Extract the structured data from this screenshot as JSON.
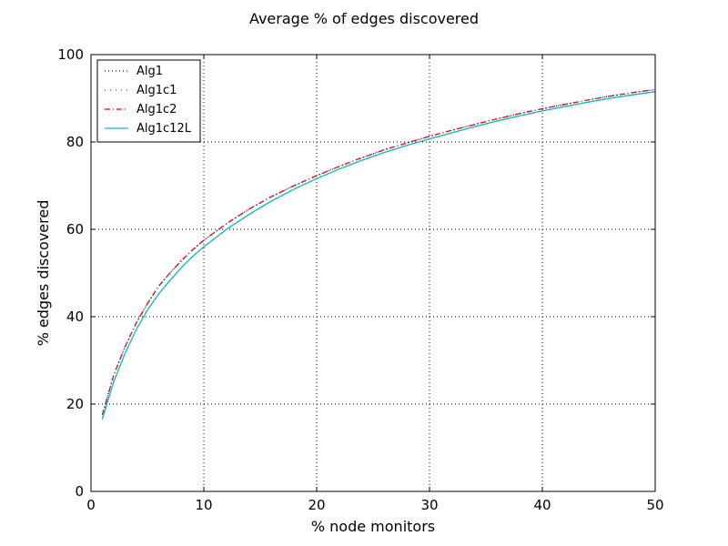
{
  "chart_data": {
    "type": "line",
    "title": "Average % of edges discovered",
    "xlabel": "% node monitors",
    "ylabel": "% edges discovered",
    "xlim": [
      0,
      50
    ],
    "ylim": [
      0,
      100
    ],
    "xticks": [
      0,
      10,
      20,
      30,
      40,
      50
    ],
    "yticks": [
      0,
      20,
      40,
      60,
      80,
      100
    ],
    "grid": true,
    "legend_position": "top-left",
    "x": [
      1,
      2,
      3,
      4,
      5,
      6,
      7,
      8,
      9,
      10,
      12,
      14,
      16,
      18,
      20,
      22,
      24,
      26,
      28,
      30,
      32,
      34,
      36,
      38,
      40,
      42,
      44,
      46,
      48,
      50
    ],
    "series": [
      {
        "name": "Alg1",
        "style": "dotted",
        "color": "#0000bf",
        "values": [
          17.5,
          26.5,
          33.0,
          38.5,
          43.0,
          47.0,
          50.0,
          52.8,
          55.3,
          57.5,
          61.3,
          64.6,
          67.5,
          70.0,
          72.3,
          74.4,
          76.4,
          78.2,
          79.8,
          81.3,
          82.7,
          84.0,
          85.3,
          86.5,
          87.6,
          88.6,
          89.6,
          90.5,
          91.3,
          92.0
        ]
      },
      {
        "name": "Alg1c1",
        "style": "dashdot-sparse",
        "color": "#008000",
        "values": [
          16.8,
          25.0,
          31.5,
          37.0,
          41.5,
          45.2,
          48.3,
          51.2,
          53.8,
          56.0,
          60.0,
          63.4,
          66.5,
          69.2,
          71.6,
          73.8,
          75.8,
          77.6,
          79.2,
          80.7,
          82.1,
          83.5,
          84.8,
          86.0,
          87.1,
          88.1,
          89.1,
          90.0,
          90.8,
          91.5
        ]
      },
      {
        "name": "Alg1c2",
        "style": "dashdot",
        "color": "#ff0000",
        "values": [
          17.5,
          26.5,
          33.0,
          38.5,
          43.0,
          47.0,
          50.0,
          52.8,
          55.3,
          57.5,
          61.3,
          64.6,
          67.5,
          70.0,
          72.3,
          74.4,
          76.4,
          78.2,
          79.8,
          81.3,
          82.7,
          84.0,
          85.3,
          86.5,
          87.6,
          88.6,
          89.6,
          90.5,
          91.3,
          92.0
        ]
      },
      {
        "name": "Alg1c12L",
        "style": "solid",
        "color": "#00bfbf",
        "values": [
          16.5,
          25.0,
          31.5,
          37.0,
          41.5,
          45.2,
          48.3,
          51.2,
          53.8,
          56.0,
          60.0,
          63.4,
          66.5,
          69.2,
          71.6,
          73.8,
          75.8,
          77.6,
          79.2,
          80.7,
          82.1,
          83.5,
          84.8,
          86.0,
          87.1,
          88.1,
          89.1,
          90.0,
          90.8,
          91.5
        ]
      }
    ]
  }
}
